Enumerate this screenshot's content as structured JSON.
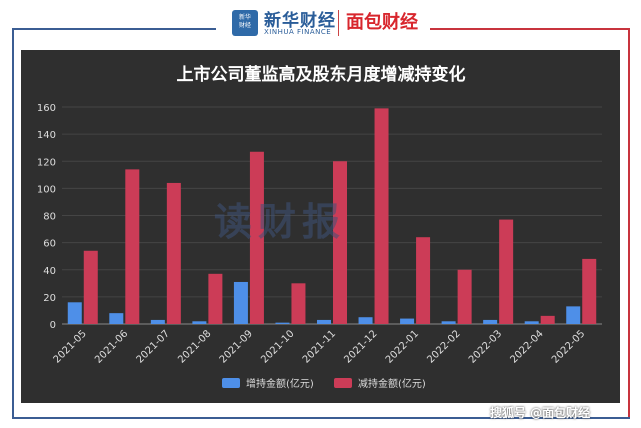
{
  "header": {
    "logo_badge": "新华财经",
    "brand_cn": "新华财经",
    "brand_en": "XINHUA FINANCE",
    "partner": "面包财经"
  },
  "watermark": "读财报",
  "footer": "搜狐号 @面包财经",
  "colors": {
    "increase": "#4e8fe8",
    "decrease": "#cc3c57",
    "background": "#2f2f2f",
    "grid": "#454545"
  },
  "chart_data": {
    "type": "bar",
    "title": "上市公司董监高及股东月度增减持变化",
    "categories": [
      "2021-05",
      "2021-06",
      "2021-07",
      "2021-08",
      "2021-09",
      "2021-10",
      "2021-11",
      "2021-12",
      "2022-01",
      "2022-02",
      "2022-03",
      "2022-04",
      "2022-05"
    ],
    "series": [
      {
        "name": "增持金额(亿元)",
        "values": [
          16,
          8,
          3,
          2,
          31,
          1,
          3,
          5,
          4,
          2,
          3,
          2,
          13
        ]
      },
      {
        "name": "减持金额(亿元)",
        "values": [
          54,
          114,
          104,
          37,
          127,
          30,
          120,
          159,
          64,
          40,
          77,
          6,
          48
        ]
      }
    ],
    "ylim": [
      0,
      160
    ],
    "yticks": [
      0,
      20,
      40,
      60,
      80,
      100,
      120,
      140,
      160
    ],
    "grid": true,
    "legend": "bottom-center"
  }
}
